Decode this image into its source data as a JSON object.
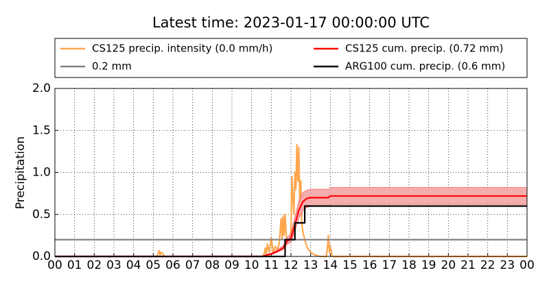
{
  "chart_data": {
    "type": "line",
    "title": "Latest time: 2023-01-17 00:00:00 UTC",
    "y_label": "Precipitation",
    "xlim": [
      0,
      24
    ],
    "ylim": [
      0,
      2
    ],
    "xticks": [
      {
        "value": 0,
        "label": "00"
      },
      {
        "value": 1,
        "label": "01"
      },
      {
        "value": 2,
        "label": "02"
      },
      {
        "value": 3,
        "label": "03"
      },
      {
        "value": 4,
        "label": "04"
      },
      {
        "value": 5,
        "label": "05"
      },
      {
        "value": 6,
        "label": "06"
      },
      {
        "value": 7,
        "label": "07"
      },
      {
        "value": 8,
        "label": "08"
      },
      {
        "value": 9,
        "label": "09"
      },
      {
        "value": 10,
        "label": "10"
      },
      {
        "value": 11,
        "label": "11"
      },
      {
        "value": 12,
        "label": "12"
      },
      {
        "value": 13,
        "label": "13"
      },
      {
        "value": 14,
        "label": "14"
      },
      {
        "value": 15,
        "label": "15"
      },
      {
        "value": 16,
        "label": "16"
      },
      {
        "value": 17,
        "label": "17"
      },
      {
        "value": 18,
        "label": "18"
      },
      {
        "value": 19,
        "label": "19"
      },
      {
        "value": 20,
        "label": "20"
      },
      {
        "value": 21,
        "label": "21"
      },
      {
        "value": 22,
        "label": "22"
      },
      {
        "value": 23,
        "label": "23"
      },
      {
        "value": 24,
        "label": "00"
      }
    ],
    "yticks": [
      {
        "value": 0,
        "label": "0.0"
      },
      {
        "value": 0.5,
        "label": "0.5"
      },
      {
        "value": 1,
        "label": "1.0"
      },
      {
        "value": 1.5,
        "label": "1.5"
      },
      {
        "value": 2,
        "label": "2.0"
      }
    ],
    "grid": true,
    "series": [
      {
        "name": "CS125 precip. intensity (0.0 mm/h)",
        "color": "#ffa64d",
        "x": [
          0,
          5.2,
          5.3,
          5.35,
          5.4,
          5.5,
          5.55,
          5.6,
          10.6,
          10.7,
          10.75,
          10.8,
          10.9,
          11.0,
          11.1,
          11.2,
          11.3,
          11.4,
          11.5,
          11.55,
          11.6,
          11.65,
          11.7,
          11.75,
          11.8,
          11.9,
          12.0,
          12.05,
          12.1,
          12.15,
          12.2,
          12.25,
          12.3,
          12.35,
          12.4,
          12.45,
          12.5,
          12.55,
          12.6,
          12.7,
          12.8,
          12.9,
          13.0,
          13.2,
          13.5,
          13.8,
          13.85,
          13.9,
          13.95,
          14.0,
          14.1,
          24
        ],
        "values": [
          0,
          0,
          0.07,
          0.02,
          0.05,
          0.03,
          0,
          0,
          0,
          0.1,
          0.02,
          0.15,
          0.05,
          0.22,
          0.05,
          0.12,
          0.08,
          0.15,
          0.45,
          0.2,
          0.48,
          0.25,
          0.5,
          0.3,
          0.15,
          0.2,
          0.3,
          0.95,
          0.7,
          0.5,
          1.0,
          0.8,
          1.33,
          0.9,
          1.3,
          0.6,
          0.9,
          0.4,
          0.3,
          0.2,
          0.12,
          0.08,
          0.05,
          0.02,
          0,
          0,
          0.1,
          0.25,
          0.05,
          0.12,
          0,
          0
        ]
      },
      {
        "name": "0.2 mm",
        "color": "#808080",
        "x": [
          0,
          24
        ],
        "values": [
          0.2,
          0.2
        ]
      },
      {
        "name": "CS125 cum. precip. (0.72 mm)",
        "color": "#ff0000",
        "band_color": "#f4a6a6",
        "x": [
          0,
          10.5,
          10.7,
          11.0,
          11.3,
          11.6,
          11.8,
          12.0,
          12.2,
          12.4,
          12.6,
          12.8,
          13.0,
          13.5,
          13.9,
          14.0,
          24
        ],
        "values": [
          0,
          0,
          0.01,
          0.03,
          0.06,
          0.1,
          0.18,
          0.22,
          0.38,
          0.55,
          0.65,
          0.69,
          0.7,
          0.7,
          0.7,
          0.72,
          0.72
        ],
        "upper": [
          0,
          0,
          0.02,
          0.04,
          0.08,
          0.13,
          0.22,
          0.28,
          0.47,
          0.66,
          0.76,
          0.79,
          0.8,
          0.8,
          0.8,
          0.82,
          0.82
        ],
        "lower": [
          0,
          0,
          0.01,
          0.02,
          0.05,
          0.08,
          0.14,
          0.17,
          0.3,
          0.45,
          0.54,
          0.58,
          0.6,
          0.6,
          0.6,
          0.62,
          0.62
        ]
      },
      {
        "name": "ARG100 cum. precip. (0.6 mm)",
        "color": "#000000",
        "step": "post",
        "x": [
          0,
          11.7,
          12.2,
          12.7,
          24
        ],
        "values": [
          0,
          0.2,
          0.4,
          0.6,
          0.6
        ]
      }
    ]
  }
}
